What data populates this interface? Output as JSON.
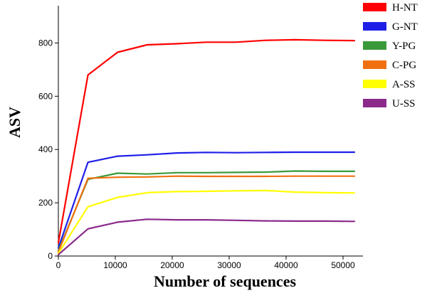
{
  "chart_data": {
    "type": "line",
    "xlabel": "Number of sequences",
    "ylabel": "ASV",
    "xlim": [
      0,
      53500
    ],
    "ylim": [
      0,
      940
    ],
    "xticks": [
      0,
      10000,
      20000,
      30000,
      40000,
      50000
    ],
    "yticks": [
      0,
      200,
      400,
      600,
      800
    ],
    "grid": false,
    "legend_position": "top-right",
    "x": [
      0,
      5200,
      10400,
      15600,
      20800,
      26000,
      31200,
      36400,
      41600,
      46800,
      52000
    ],
    "series": [
      {
        "name": "H-NT",
        "color": "#ff0000",
        "values": [
          50,
          680,
          765,
          793,
          797,
          803,
          803,
          810,
          812,
          810,
          809
        ]
      },
      {
        "name": "G-NT",
        "color": "#1f1fe8",
        "values": [
          30,
          352,
          375,
          380,
          387,
          389,
          388,
          389,
          390,
          390,
          390
        ]
      },
      {
        "name": "Y-PG",
        "color": "#3a9a3a",
        "values": [
          20,
          288,
          311,
          308,
          313,
          313,
          314,
          315,
          319,
          318,
          318
        ]
      },
      {
        "name": "C-PG",
        "color": "#f07010",
        "values": [
          15,
          292,
          296,
          297,
          300,
          299,
          299,
          299,
          300,
          300,
          300
        ]
      },
      {
        "name": "A-SS",
        "color": "#ffff00",
        "values": [
          10,
          185,
          220,
          238,
          242,
          243,
          245,
          246,
          240,
          238,
          237
        ]
      },
      {
        "name": "U-SS",
        "color": "#8b2a8b",
        "values": [
          5,
          102,
          127,
          138,
          136,
          136,
          134,
          132,
          131,
          131,
          130
        ]
      }
    ]
  }
}
